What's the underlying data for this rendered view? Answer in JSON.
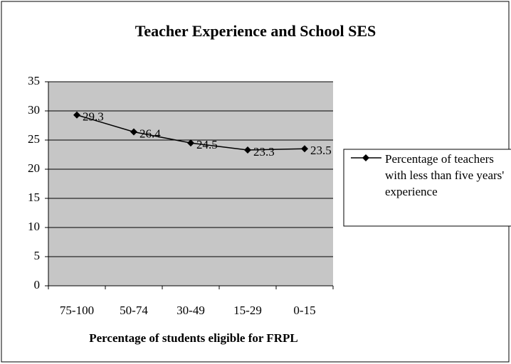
{
  "chart_data": {
    "type": "line",
    "title": "Teacher Experience and School SES",
    "x_label": "Percentage of students eligible for FRPL",
    "categories": [
      "75-100",
      "50-74",
      "30-49",
      "15-29",
      "0-15"
    ],
    "series": [
      {
        "name": "Percentage of teachers with less than five years' experience",
        "color": "#000000",
        "values": [
          29.3,
          26.4,
          24.5,
          23.3,
          23.5
        ]
      }
    ],
    "ylim": [
      0,
      35
    ],
    "yticks": [
      0,
      5,
      10,
      15,
      20,
      25,
      30,
      35
    ],
    "grid": true,
    "legend": "right"
  }
}
